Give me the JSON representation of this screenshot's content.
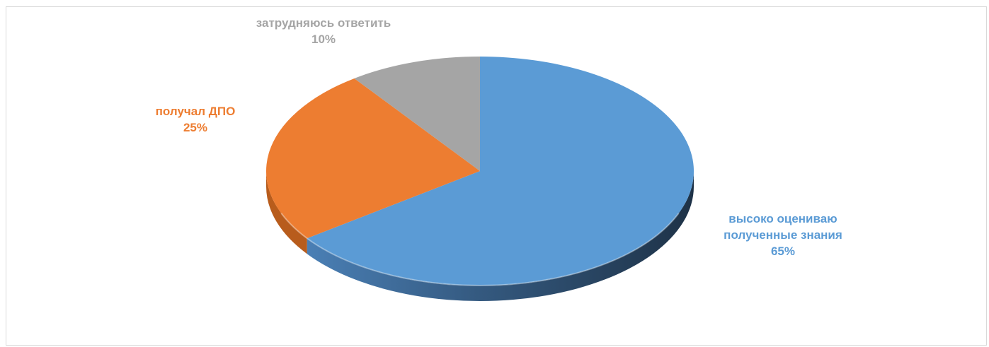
{
  "chart_data": {
    "type": "pie",
    "title": "",
    "slices": [
      {
        "label_lines": [
          "высоко оцениваю",
          "полученные знания"
        ],
        "value_label": "65%",
        "value": 65,
        "color": "#5b9bd5",
        "side_color": "#2a4560"
      },
      {
        "label_lines": [
          "получал ДПО"
        ],
        "value_label": "25%",
        "value": 25,
        "color": "#ed7d31",
        "side_color": "#b85c1c"
      },
      {
        "label_lines": [
          "затрудняюсь ответить"
        ],
        "value_label": "10%",
        "value": 10,
        "color": "#a5a5a5",
        "side_color": "#7a7a7a"
      }
    ],
    "start_at": "top",
    "direction": "clockwise",
    "style": "3d"
  }
}
